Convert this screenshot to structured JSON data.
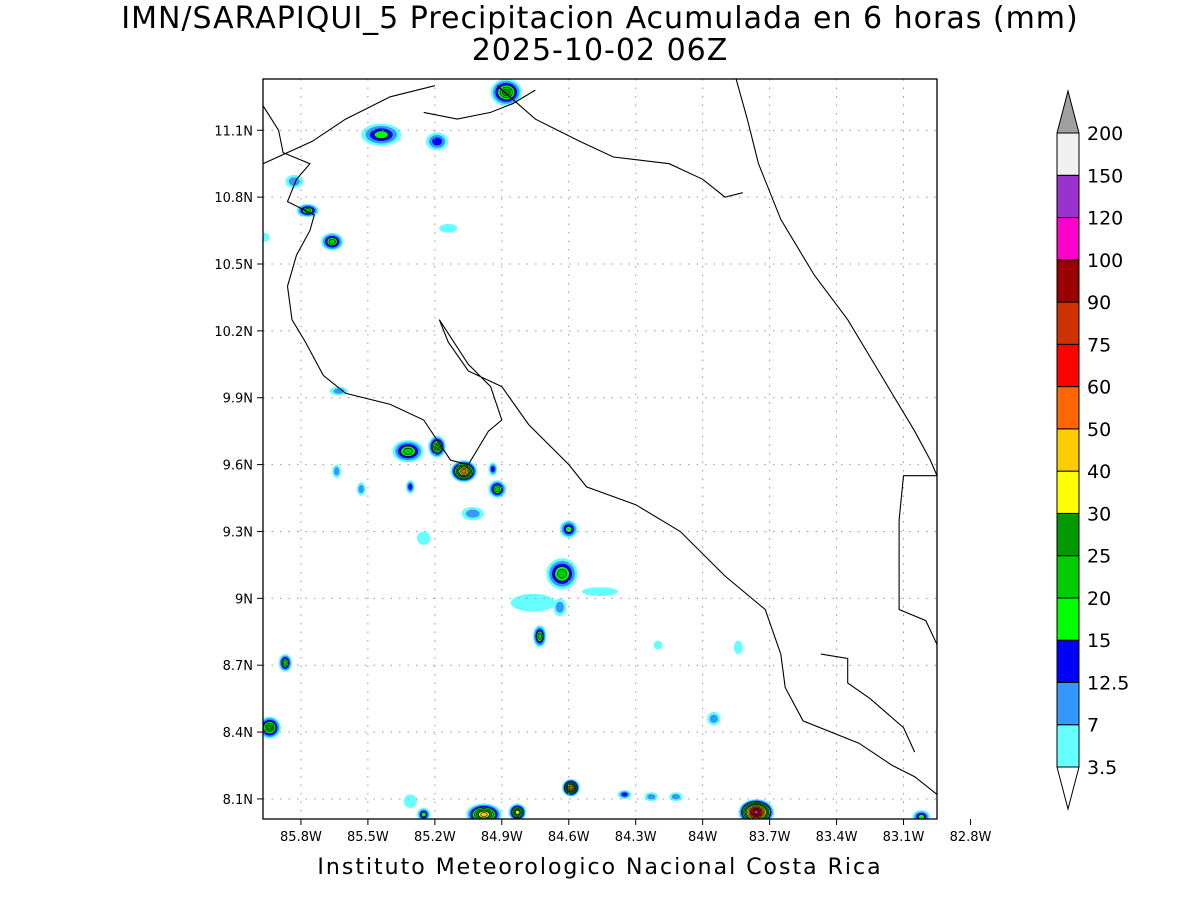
{
  "title": "IMN/SARAPIQUI_5 Precipitacion Acumulada en 6 horas (mm)",
  "subtitle": "2025-10-02 06Z",
  "footer": "Instituto Meteorologico Nacional Costa Rica",
  "map": {
    "lon_range": [
      -85.97,
      -82.95
    ],
    "lat_range": [
      8.01,
      11.33
    ],
    "lon_ticks": [
      {
        "value": -85.8,
        "label": "85.8W"
      },
      {
        "value": -85.5,
        "label": "85.5W"
      },
      {
        "value": -85.2,
        "label": "85.2W"
      },
      {
        "value": -84.9,
        "label": "84.9W"
      },
      {
        "value": -84.6,
        "label": "84.6W"
      },
      {
        "value": -84.3,
        "label": "84.3W"
      },
      {
        "value": -84.0,
        "label": "84W"
      },
      {
        "value": -83.7,
        "label": "83.7W"
      },
      {
        "value": -83.4,
        "label": "83.4W"
      },
      {
        "value": -83.1,
        "label": "83.1W"
      },
      {
        "value": -82.8,
        "label": "82.8W"
      }
    ],
    "lat_ticks": [
      {
        "value": 11.1,
        "label": "11.1N"
      },
      {
        "value": 10.8,
        "label": "10.8N"
      },
      {
        "value": 10.5,
        "label": "10.5N"
      },
      {
        "value": 10.2,
        "label": "10.2N"
      },
      {
        "value": 9.9,
        "label": "9.9N"
      },
      {
        "value": 9.6,
        "label": "9.6N"
      },
      {
        "value": 9.3,
        "label": "9.3N"
      },
      {
        "value": 9.0,
        "label": "9N"
      },
      {
        "value": 8.7,
        "label": "8.7N"
      },
      {
        "value": 8.4,
        "label": "8.4N"
      },
      {
        "value": 8.1,
        "label": "8.1N"
      }
    ],
    "grid": true,
    "colors": {
      "coastline": "#000000",
      "grid": "#9a9a9a"
    }
  },
  "colorbar": {
    "levels": [
      "3.5",
      "7",
      "12.5",
      "15",
      "20",
      "25",
      "30",
      "40",
      "50",
      "60",
      "75",
      "90",
      "100",
      "120",
      "150",
      "200"
    ],
    "colors": [
      "#66ffff",
      "#3399ff",
      "#0000ff",
      "#00ff00",
      "#00cc00",
      "#009900",
      "#ffff00",
      "#ffcc00",
      "#ff6600",
      "#ff0000",
      "#cc3300",
      "#990000",
      "#ff00cc",
      "#9933cc",
      "#f0f0f0",
      "#a0a0a0"
    ],
    "min_arrow_color": "#ffffff",
    "max_arrow_color": "#a0a0a0"
  },
  "rain_cells": [
    {
      "lon": -84.88,
      "lat": 11.27,
      "rx": 0.07,
      "ry": 0.06,
      "max_level": 5
    },
    {
      "lon": -85.44,
      "lat": 11.08,
      "rx": 0.09,
      "ry": 0.05,
      "max_level": 3
    },
    {
      "lon": -85.19,
      "lat": 11.05,
      "rx": 0.05,
      "ry": 0.04,
      "max_level": 2
    },
    {
      "lon": -85.77,
      "lat": 10.74,
      "rx": 0.05,
      "ry": 0.03,
      "max_level": 4
    },
    {
      "lon": -85.66,
      "lat": 10.6,
      "rx": 0.05,
      "ry": 0.04,
      "max_level": 4
    },
    {
      "lon": -85.83,
      "lat": 10.87,
      "rx": 0.04,
      "ry": 0.03,
      "max_level": 1
    },
    {
      "lon": -85.14,
      "lat": 10.66,
      "rx": 0.04,
      "ry": 0.02,
      "max_level": 0
    },
    {
      "lon": -85.63,
      "lat": 9.93,
      "rx": 0.04,
      "ry": 0.02,
      "max_level": 1
    },
    {
      "lon": -85.32,
      "lat": 9.66,
      "rx": 0.07,
      "ry": 0.05,
      "max_level": 4
    },
    {
      "lon": -85.19,
      "lat": 9.68,
      "rx": 0.04,
      "ry": 0.05,
      "max_level": 5
    },
    {
      "lon": -85.07,
      "lat": 9.57,
      "rx": 0.06,
      "ry": 0.05,
      "max_level": 8
    },
    {
      "lon": -84.92,
      "lat": 9.49,
      "rx": 0.04,
      "ry": 0.04,
      "max_level": 4
    },
    {
      "lon": -84.94,
      "lat": 9.58,
      "rx": 0.02,
      "ry": 0.03,
      "max_level": 2
    },
    {
      "lon": -85.53,
      "lat": 9.49,
      "rx": 0.02,
      "ry": 0.03,
      "max_level": 1
    },
    {
      "lon": -85.31,
      "lat": 9.5,
      "rx": 0.02,
      "ry": 0.03,
      "max_level": 2
    },
    {
      "lon": -85.64,
      "lat": 9.57,
      "rx": 0.02,
      "ry": 0.03,
      "max_level": 1
    },
    {
      "lon": -85.03,
      "lat": 9.38,
      "rx": 0.05,
      "ry": 0.03,
      "max_level": 1
    },
    {
      "lon": -84.6,
      "lat": 9.31,
      "rx": 0.04,
      "ry": 0.04,
      "max_level": 3
    },
    {
      "lon": -84.63,
      "lat": 9.11,
      "rx": 0.07,
      "ry": 0.07,
      "max_level": 4
    },
    {
      "lon": -84.76,
      "lat": 8.98,
      "rx": 0.1,
      "ry": 0.04,
      "max_level": 0
    },
    {
      "lon": -84.64,
      "lat": 8.96,
      "rx": 0.03,
      "ry": 0.04,
      "max_level": 1
    },
    {
      "lon": -84.73,
      "lat": 8.83,
      "rx": 0.03,
      "ry": 0.05,
      "max_level": 4
    },
    {
      "lon": -84.46,
      "lat": 9.03,
      "rx": 0.08,
      "ry": 0.02,
      "max_level": 0
    },
    {
      "lon": -85.25,
      "lat": 9.27,
      "rx": 0.03,
      "ry": 0.03,
      "max_level": 0
    },
    {
      "lon": -85.87,
      "lat": 8.71,
      "rx": 0.03,
      "ry": 0.04,
      "max_level": 4
    },
    {
      "lon": -85.94,
      "lat": 8.42,
      "rx": 0.05,
      "ry": 0.05,
      "max_level": 5
    },
    {
      "lon": -83.95,
      "lat": 8.46,
      "rx": 0.03,
      "ry": 0.03,
      "max_level": 1
    },
    {
      "lon": -84.59,
      "lat": 8.15,
      "rx": 0.04,
      "ry": 0.04,
      "max_level": 8
    },
    {
      "lon": -84.35,
      "lat": 8.12,
      "rx": 0.03,
      "ry": 0.02,
      "max_level": 2
    },
    {
      "lon": -84.23,
      "lat": 8.11,
      "rx": 0.03,
      "ry": 0.02,
      "max_level": 1
    },
    {
      "lon": -84.12,
      "lat": 8.11,
      "rx": 0.03,
      "ry": 0.02,
      "max_level": 1
    },
    {
      "lon": -85.31,
      "lat": 8.09,
      "rx": 0.03,
      "ry": 0.03,
      "max_level": 0
    },
    {
      "lon": -84.98,
      "lat": 8.03,
      "rx": 0.08,
      "ry": 0.05,
      "max_level": 7
    },
    {
      "lon": -84.83,
      "lat": 8.04,
      "rx": 0.04,
      "ry": 0.04,
      "max_level": 6
    },
    {
      "lon": -85.25,
      "lat": 8.03,
      "rx": 0.03,
      "ry": 0.03,
      "max_level": 3
    },
    {
      "lon": -83.76,
      "lat": 8.04,
      "rx": 0.08,
      "ry": 0.06,
      "max_level": 12
    },
    {
      "lon": -83.02,
      "lat": 8.02,
      "rx": 0.04,
      "ry": 0.03,
      "max_level": 3
    },
    {
      "lon": -85.96,
      "lat": 10.62,
      "rx": 0.02,
      "ry": 0.02,
      "max_level": 0
    },
    {
      "lon": -83.84,
      "lat": 8.78,
      "rx": 0.02,
      "ry": 0.03,
      "max_level": 0
    },
    {
      "lon": -84.2,
      "lat": 8.79,
      "rx": 0.02,
      "ry": 0.02,
      "max_level": 0
    }
  ],
  "coastlines": [
    [
      [
        -85.97,
        11.21
      ],
      [
        -85.9,
        11.1
      ],
      [
        -85.88,
        11.0
      ],
      [
        -85.76,
        10.95
      ],
      [
        -85.82,
        10.88
      ],
      [
        -85.86,
        10.78
      ],
      [
        -85.74,
        10.72
      ],
      [
        -85.76,
        10.65
      ],
      [
        -85.82,
        10.54
      ],
      [
        -85.86,
        10.4
      ],
      [
        -85.84,
        10.25
      ],
      [
        -85.78,
        10.15
      ],
      [
        -85.7,
        10.0
      ],
      [
        -85.6,
        9.92
      ],
      [
        -85.4,
        9.87
      ],
      [
        -85.25,
        9.8
      ],
      [
        -85.13,
        9.62
      ],
      [
        -85.05,
        9.6
      ],
      [
        -84.96,
        9.75
      ],
      [
        -84.9,
        9.8
      ],
      [
        -84.95,
        9.95
      ],
      [
        -85.05,
        10.05
      ],
      [
        -85.18,
        10.25
      ],
      [
        -85.14,
        10.15
      ],
      [
        -85.05,
        10.02
      ],
      [
        -84.9,
        9.95
      ],
      [
        -84.78,
        9.78
      ],
      [
        -84.6,
        9.6
      ],
      [
        -84.52,
        9.5
      ],
      [
        -84.3,
        9.42
      ],
      [
        -84.1,
        9.3
      ],
      [
        -83.9,
        9.1
      ],
      [
        -83.72,
        8.95
      ],
      [
        -83.65,
        8.75
      ],
      [
        -83.63,
        8.6
      ],
      [
        -83.55,
        8.45
      ],
      [
        -83.3,
        8.35
      ],
      [
        -83.15,
        8.25
      ],
      [
        -83.05,
        8.2
      ],
      [
        -82.95,
        8.12
      ]
    ],
    [
      [
        -83.47,
        8.75
      ],
      [
        -83.35,
        8.73
      ],
      [
        -83.35,
        8.62
      ],
      [
        -83.25,
        8.55
      ],
      [
        -83.1,
        8.42
      ],
      [
        -83.05,
        8.31
      ]
    ],
    [
      [
        -84.92,
        11.3
      ],
      [
        -84.75,
        11.15
      ],
      [
        -84.55,
        11.05
      ],
      [
        -84.4,
        10.98
      ],
      [
        -84.15,
        10.95
      ],
      [
        -84.0,
        10.88
      ],
      [
        -83.9,
        10.8
      ],
      [
        -83.82,
        10.82
      ]
    ],
    [
      [
        -85.97,
        10.95
      ],
      [
        -85.75,
        11.05
      ],
      [
        -85.6,
        11.15
      ],
      [
        -85.4,
        11.25
      ],
      [
        -85.2,
        11.3
      ]
    ],
    [
      [
        -83.85,
        11.33
      ],
      [
        -83.8,
        11.15
      ],
      [
        -83.75,
        10.95
      ],
      [
        -83.65,
        10.7
      ],
      [
        -83.5,
        10.45
      ],
      [
        -83.35,
        10.25
      ],
      [
        -83.2,
        10.0
      ],
      [
        -83.05,
        9.75
      ],
      [
        -82.98,
        9.62
      ],
      [
        -82.95,
        9.55
      ]
    ],
    [
      [
        -82.95,
        9.55
      ],
      [
        -83.1,
        9.55
      ],
      [
        -83.12,
        9.35
      ],
      [
        -83.12,
        9.1
      ],
      [
        -83.12,
        8.95
      ],
      [
        -83.0,
        8.9
      ],
      [
        -82.93,
        8.75
      ],
      [
        -82.95,
        8.45
      ],
      [
        -82.95,
        8.3
      ],
      [
        -82.95,
        8.12
      ]
    ],
    [
      [
        -84.75,
        11.28
      ],
      [
        -84.85,
        11.22
      ],
      [
        -84.95,
        11.18
      ],
      [
        -85.1,
        11.15
      ],
      [
        -85.25,
        11.18
      ]
    ]
  ]
}
